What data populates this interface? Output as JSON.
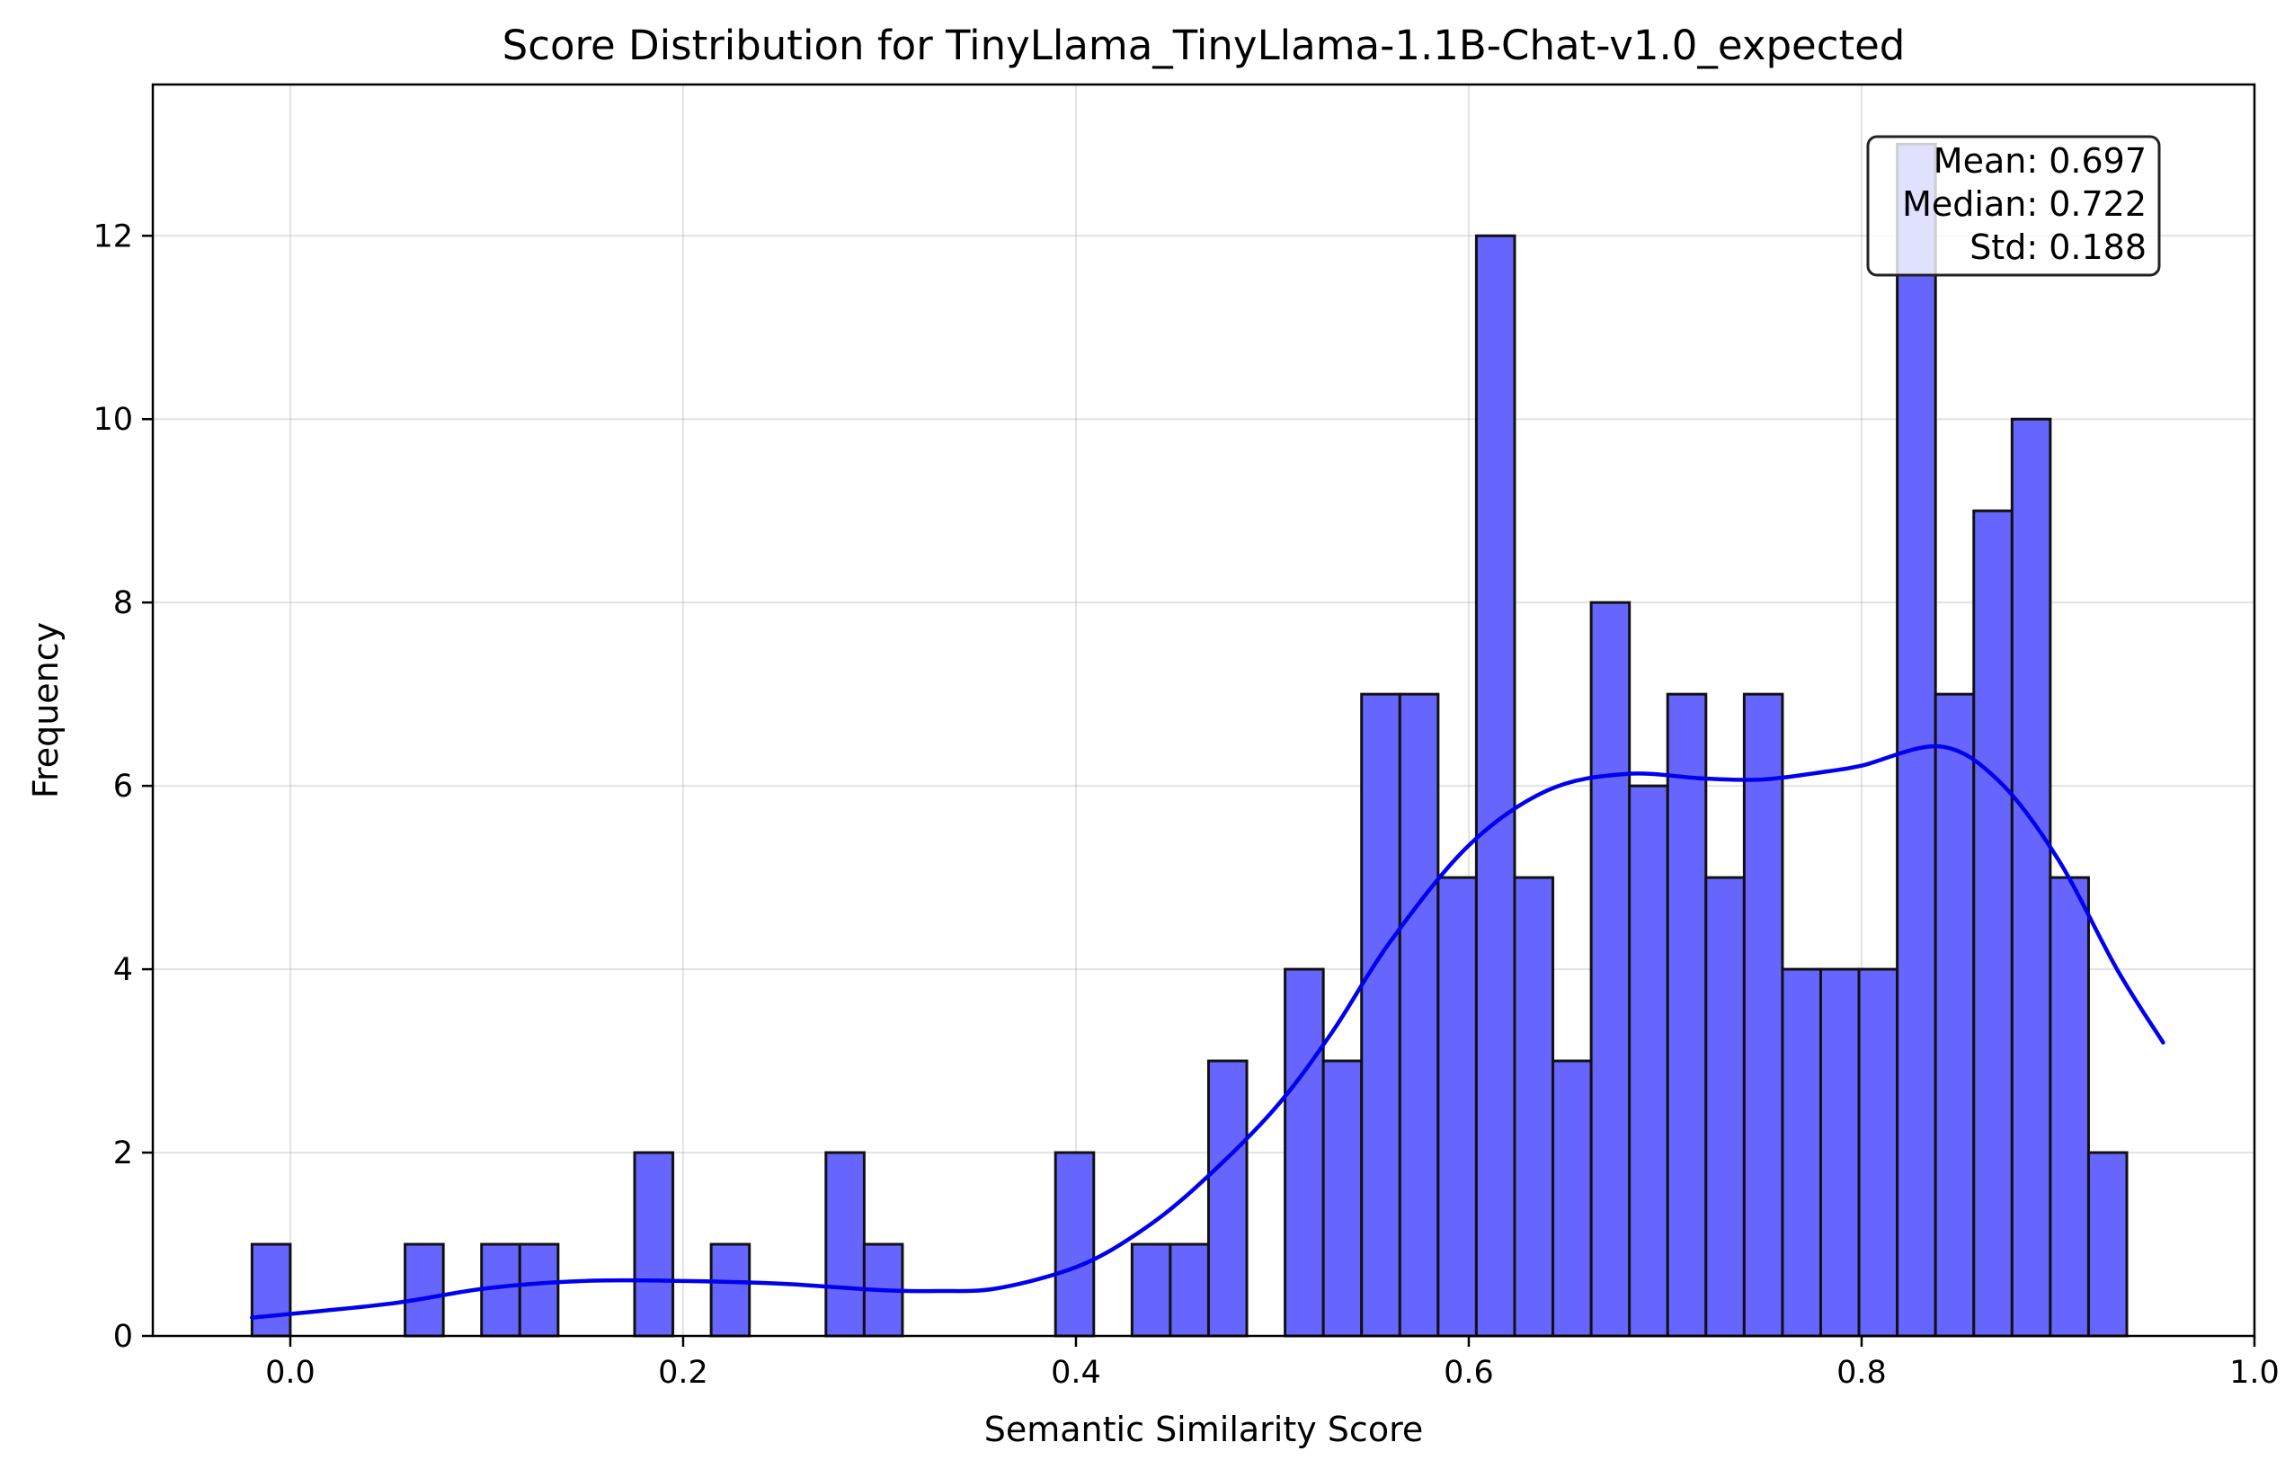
{
  "chart_data": {
    "type": "bar",
    "title": "Score Distribution for TinyLlama_TinyLlama-1.1B-Chat-v1.0_expected",
    "xlabel": "Semantic Similarity Score",
    "ylabel": "Frequency",
    "xlim": [
      -0.07,
      1.0
    ],
    "ylim": [
      0,
      13.65
    ],
    "xticks": [
      0.0,
      0.2,
      0.4,
      0.6,
      0.8,
      1.0
    ],
    "xtick_labels": [
      "0.0",
      "0.2",
      "0.4",
      "0.6",
      "0.8",
      "1.0"
    ],
    "yticks": [
      0,
      2,
      4,
      6,
      8,
      10,
      12
    ],
    "ytick_labels": [
      "0",
      "2",
      "4",
      "6",
      "8",
      "10",
      "12"
    ],
    "grid": true,
    "bin_start": -0.0195,
    "bin_width": 0.01948,
    "values": [
      1,
      0,
      0,
      0,
      1,
      0,
      1,
      1,
      0,
      0,
      2,
      0,
      1,
      0,
      0,
      2,
      1,
      0,
      0,
      0,
      0,
      2,
      0,
      1,
      1,
      3,
      0,
      4,
      3,
      7,
      7,
      5,
      12,
      5,
      3,
      8,
      6,
      7,
      5,
      7,
      4,
      4,
      4,
      13,
      7,
      9,
      10,
      5,
      2
    ],
    "bar_color": "#6666ff",
    "bar_edge_color": "#111111",
    "kde": {
      "color": "#0000ee",
      "x": [
        -0.0195,
        0.05,
        0.1,
        0.15,
        0.2,
        0.25,
        0.3,
        0.33,
        0.36,
        0.4,
        0.43,
        0.46,
        0.5,
        0.53,
        0.56,
        0.6,
        0.64,
        0.68,
        0.72,
        0.75,
        0.78,
        0.8,
        0.84,
        0.87,
        0.9,
        0.93,
        0.9535
      ],
      "y": [
        0.2,
        0.35,
        0.52,
        0.6,
        0.6,
        0.57,
        0.5,
        0.49,
        0.52,
        0.75,
        1.1,
        1.6,
        2.45,
        3.3,
        4.3,
        5.35,
        5.95,
        6.13,
        6.08,
        6.07,
        6.15,
        6.22,
        6.43,
        6.05,
        5.2,
        4.0,
        3.2
      ]
    },
    "stats": {
      "mean": "Mean: 0.697",
      "median": "Median: 0.722",
      "std": "Std: 0.188"
    },
    "legend": "none"
  }
}
